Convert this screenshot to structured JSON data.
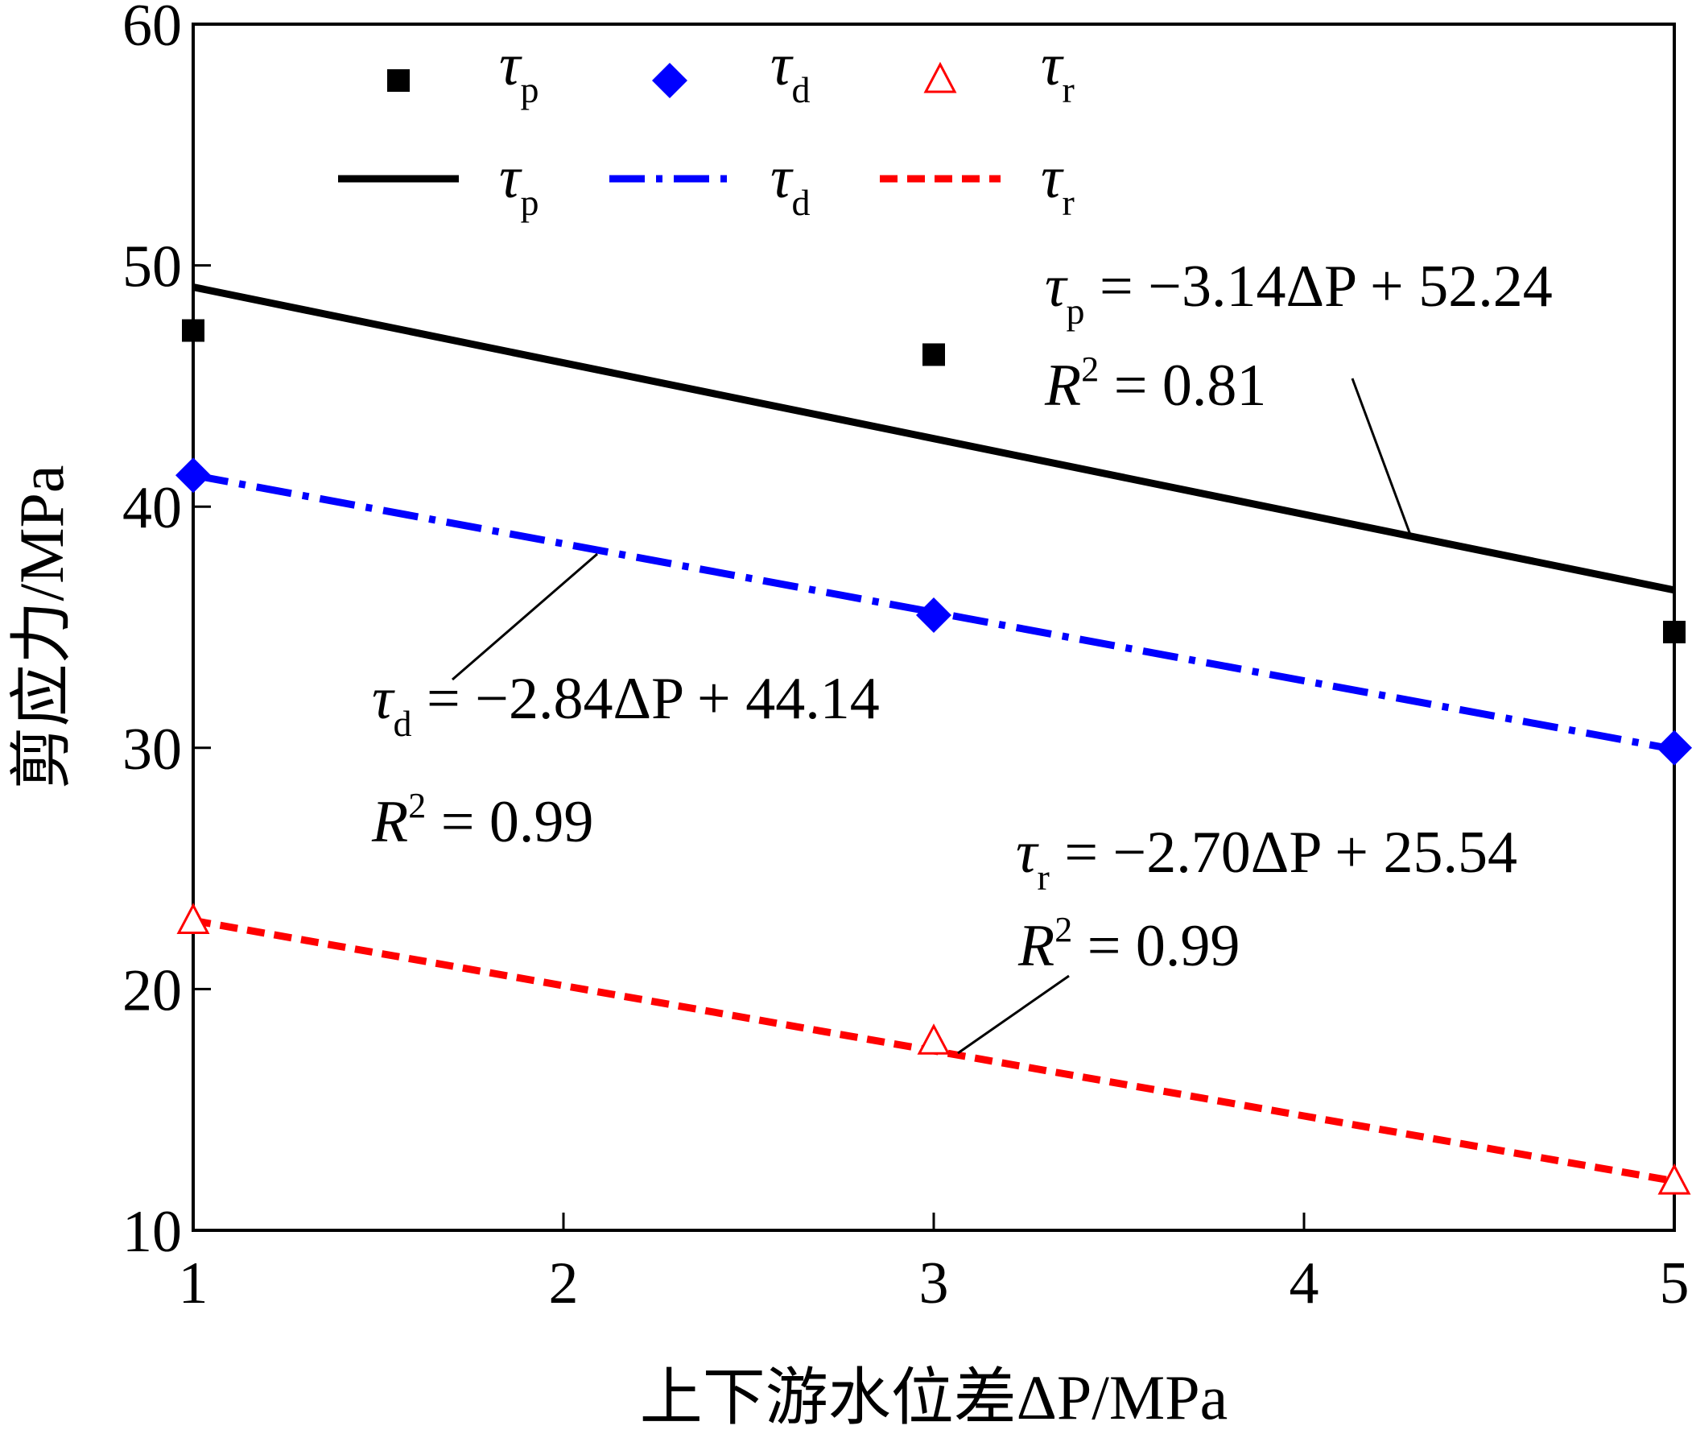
{
  "chart_data": {
    "type": "scatter",
    "xlabel": "上下游水位差ΔP/MPa",
    "ylabel": "剪应力/MPa",
    "xlim": [
      1,
      5
    ],
    "ylim": [
      10,
      60
    ],
    "x_ticks": [
      1,
      2,
      3,
      4,
      5
    ],
    "y_ticks": [
      10,
      20,
      30,
      40,
      50,
      60
    ],
    "x_tick_labels": [
      "1",
      "2",
      "3",
      "4",
      "5"
    ],
    "y_tick_labels": [
      "10",
      "20",
      "30",
      "40",
      "50",
      "60"
    ],
    "grid": false,
    "legend_position": "top",
    "series": [
      {
        "key": "p",
        "symbol": "τ",
        "subscript": "p",
        "marker": "square",
        "line_style": "solid",
        "color": "#000000",
        "points": [
          {
            "x": 1,
            "y": 47.3
          },
          {
            "x": 3,
            "y": 46.3
          },
          {
            "x": 5,
            "y": 34.8
          }
        ],
        "fit": {
          "slope": -3.14,
          "intercept": 52.24
        },
        "equation": "= −3.14ΔP + 52.24",
        "r2_label": "R",
        "r2_value": "= 0.81"
      },
      {
        "key": "d",
        "symbol": "τ",
        "subscript": "d",
        "marker": "diamond",
        "line_style": "dashdot",
        "color": "#0000ff",
        "points": [
          {
            "x": 1,
            "y": 41.3
          },
          {
            "x": 3,
            "y": 35.5
          },
          {
            "x": 5,
            "y": 30.0
          }
        ],
        "fit": {
          "slope": -2.84,
          "intercept": 44.14
        },
        "equation": "= −2.84ΔP + 44.14",
        "r2_label": "R",
        "r2_value": "= 0.99"
      },
      {
        "key": "r",
        "symbol": "τ",
        "subscript": "r",
        "marker": "triangle-open",
        "line_style": "dashed",
        "color": "#ff0000",
        "points": [
          {
            "x": 1,
            "y": 22.8
          },
          {
            "x": 3,
            "y": 17.8
          },
          {
            "x": 5,
            "y": 12.0
          }
        ],
        "fit": {
          "slope": -2.7,
          "intercept": 25.54
        },
        "equation": "= −2.70ΔP + 25.54",
        "r2_label": "R",
        "r2_value": "= 0.99"
      }
    ]
  }
}
